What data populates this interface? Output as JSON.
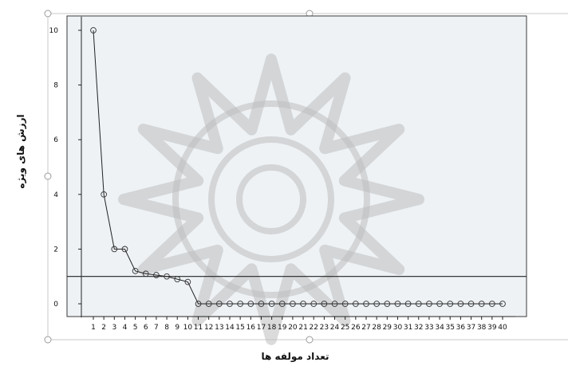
{
  "chart_data": {
    "type": "line",
    "title": "",
    "xlabel": "تعداد مولفه ها",
    "ylabel": "ارزش های ویژه",
    "ylim": [
      -0.5,
      10.5
    ],
    "yticks": [
      0,
      2,
      4,
      6,
      8,
      10
    ],
    "grid": false,
    "reference_line_y": 1,
    "x": [
      1,
      2,
      3,
      4,
      5,
      6,
      7,
      8,
      9,
      10,
      11,
      12,
      13,
      14,
      15,
      16,
      17,
      18,
      19,
      20,
      21,
      22,
      23,
      24,
      25,
      26,
      27,
      28,
      29,
      30,
      31,
      32,
      33,
      34,
      35,
      36,
      37,
      38,
      39,
      40
    ],
    "series": [
      {
        "values": [
          10.0,
          4.0,
          2.0,
          2.0,
          1.2,
          1.1,
          1.05,
          1.0,
          0.9,
          0.8,
          0,
          0,
          0,
          0,
          0,
          0,
          0,
          0,
          0,
          0,
          0,
          0,
          0,
          0,
          0,
          0,
          0,
          0,
          0,
          0,
          0,
          0,
          0,
          0,
          0,
          0,
          0,
          0,
          0,
          0
        ]
      }
    ]
  }
}
